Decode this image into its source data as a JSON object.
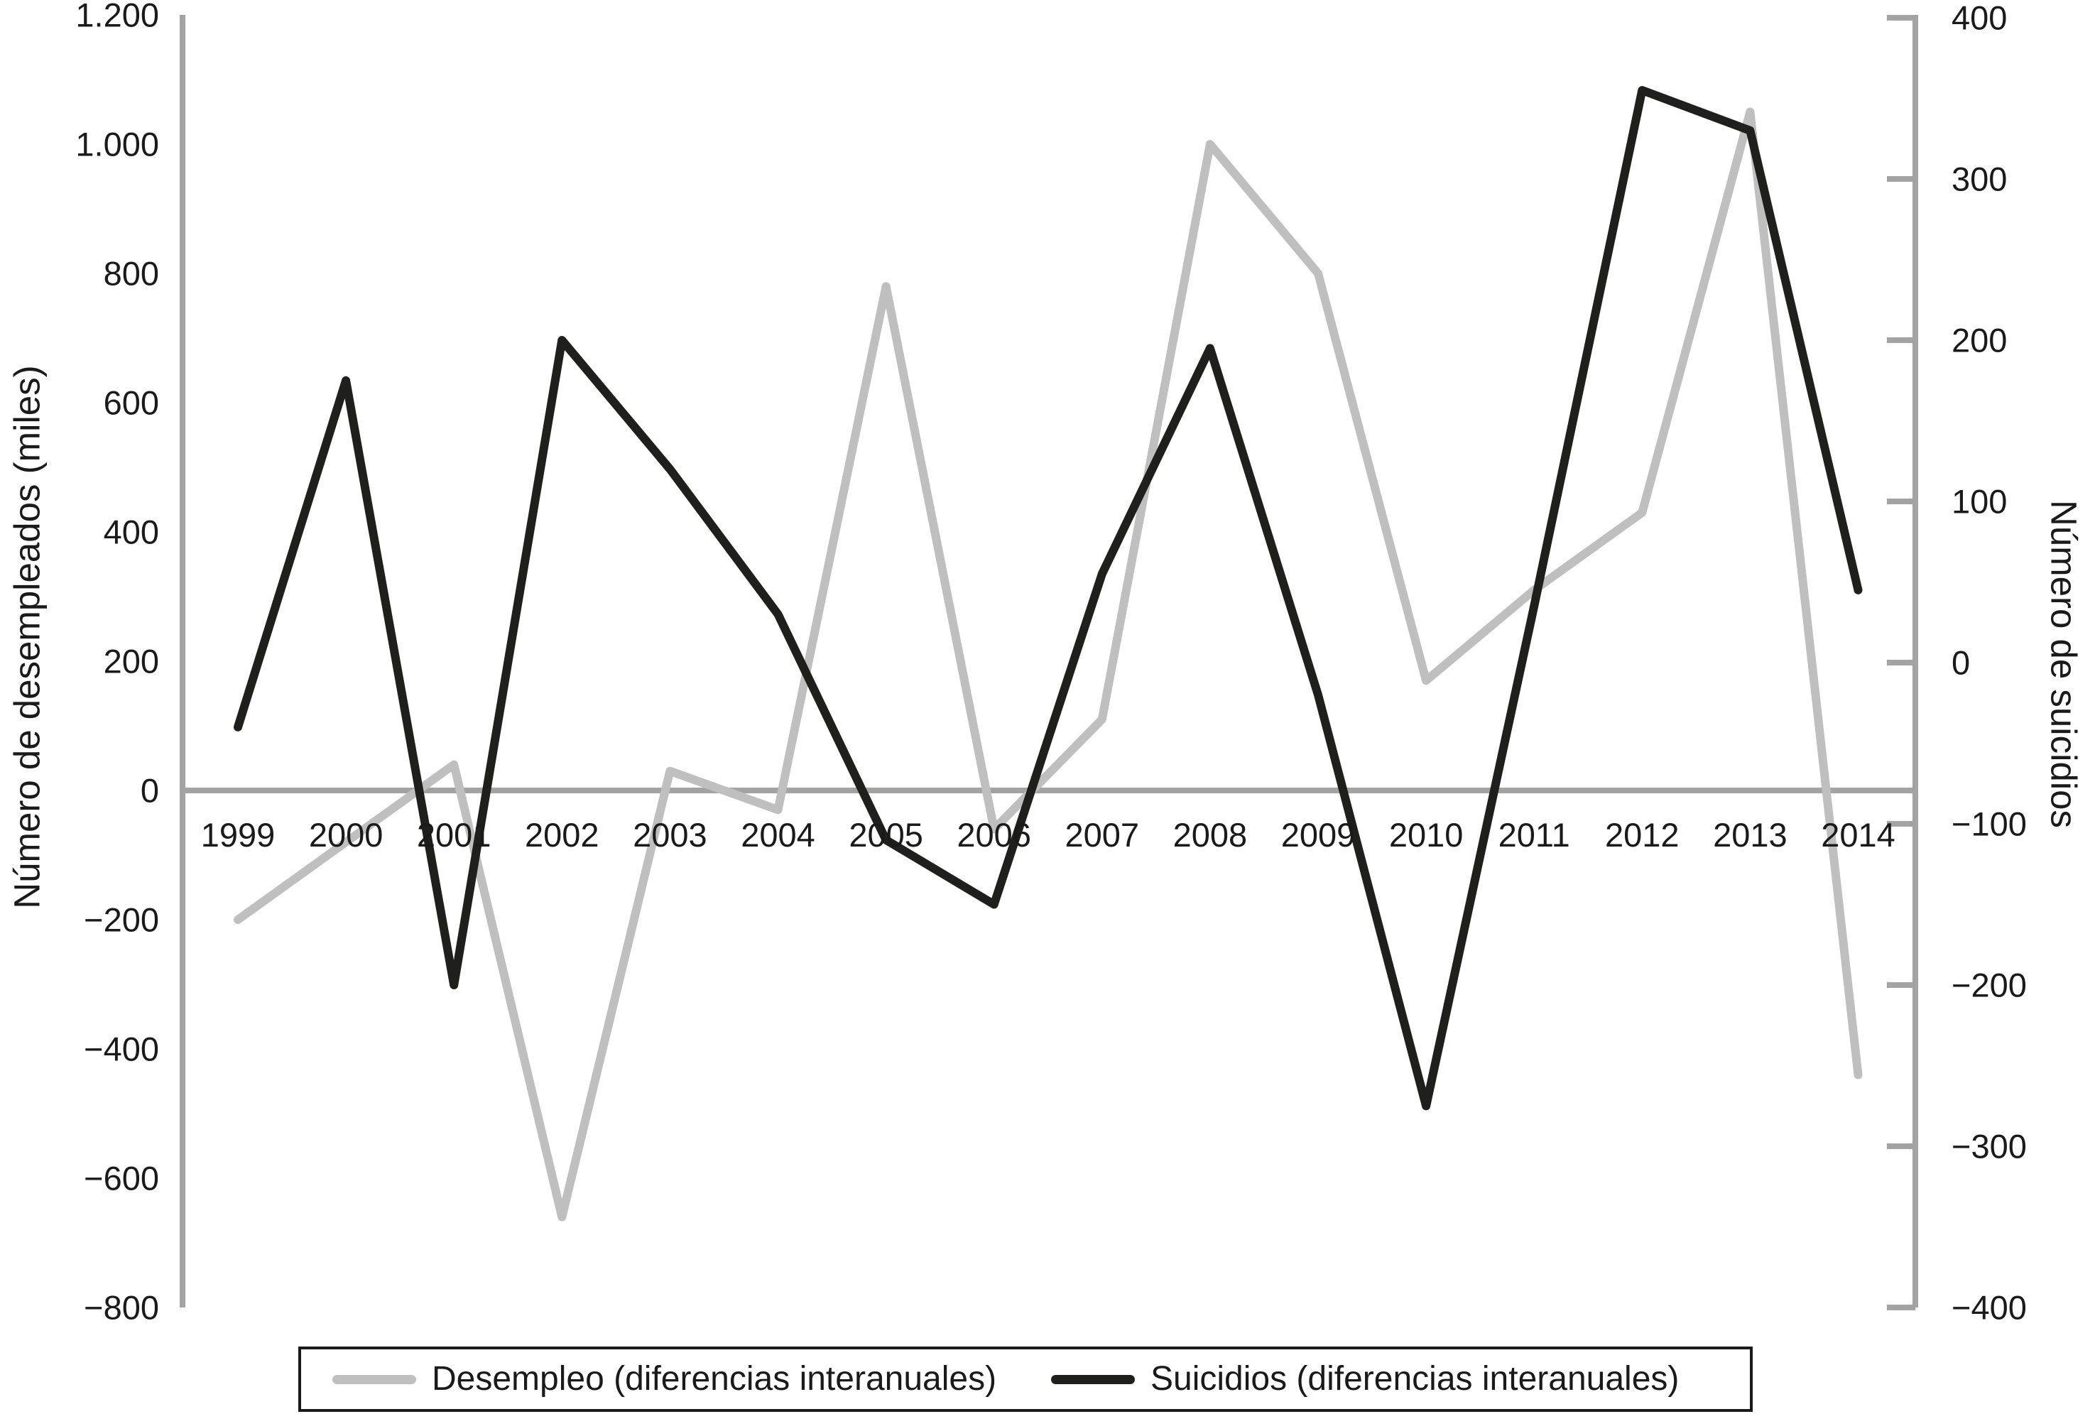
{
  "chart_data": {
    "type": "line",
    "title": "",
    "x_categories": [
      "1999",
      "2000",
      "2001",
      "2002",
      "2003",
      "2004",
      "2005",
      "2006",
      "2007",
      "2008",
      "2009",
      "2010",
      "2011",
      "2012",
      "2013",
      "2014"
    ],
    "series": [
      {
        "name": "Desempleo (diferencias interanuales)",
        "axis": "left",
        "color": "#bfbfbf",
        "values": [
          -200,
          -80,
          40,
          -660,
          30,
          -30,
          780,
          -60,
          110,
          1000,
          800,
          170,
          310,
          430,
          1050,
          -440
        ]
      },
      {
        "name": "Suicidios (diferencias interanuales)",
        "axis": "right",
        "color": "#1f1f1d",
        "values": [
          -40,
          175,
          -200,
          200,
          120,
          30,
          -110,
          -150,
          55,
          195,
          -20,
          -275,
          35,
          355,
          330,
          45
        ]
      }
    ],
    "left_axis": {
      "title": "Número de desempleados (miles)",
      "min": -800,
      "max": 1200,
      "tick_step": 200,
      "tick_labels": [
        "1.200",
        "1.000",
        "800",
        "600",
        "400",
        "200",
        "0",
        "−200",
        "−400",
        "−600",
        "−800"
      ]
    },
    "right_axis": {
      "title": "Número de suicidios",
      "min": -400,
      "max": 400,
      "tick_step": 100,
      "tick_labels": [
        "400",
        "300",
        "200",
        "100",
        "0",
        "−100",
        "−200",
        "−300",
        "−400"
      ]
    },
    "axis_color": "#a3a3a3",
    "zero_line": true,
    "grid": "off",
    "legend_position": "bottom"
  }
}
